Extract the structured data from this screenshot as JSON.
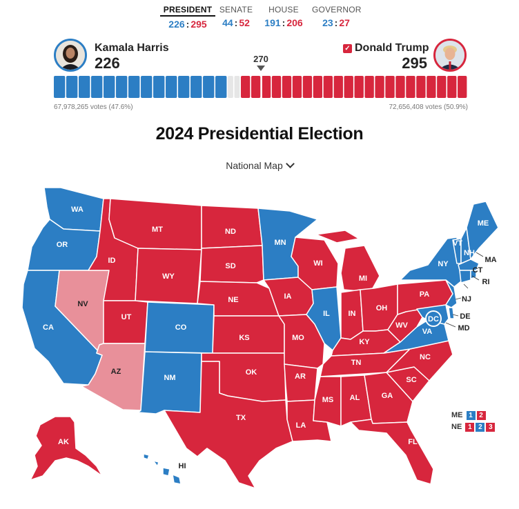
{
  "tabs": [
    {
      "label": "PRESIDENT",
      "dem": "226",
      "rep": "295",
      "active": true
    },
    {
      "label": "SENATE",
      "dem": "44",
      "rep": "52"
    },
    {
      "label": "HOUSE",
      "dem": "191",
      "rep": "206"
    },
    {
      "label": "GOVERNOR",
      "dem": "23",
      "rep": "27"
    }
  ],
  "harris": {
    "name": "Kamala Harris",
    "ev": "226",
    "popular": "67,978,265 votes (47.6%)"
  },
  "trump": {
    "name": "Donald Trump",
    "ev": "295",
    "popular": "72,656,408 votes (50.9%)",
    "winner_mark": "✓"
  },
  "threshold": "270",
  "ev_bar": {
    "dem": 226,
    "rep": 295,
    "total": 538
  },
  "title": "2024 Presidential Election",
  "map_selector": "National Map",
  "states": [
    {
      "abbr": "WA"
    },
    {
      "abbr": "OR"
    },
    {
      "abbr": "CA"
    },
    {
      "abbr": "NV"
    },
    {
      "abbr": "ID"
    },
    {
      "abbr": "MT"
    },
    {
      "abbr": "WY"
    },
    {
      "abbr": "UT"
    },
    {
      "abbr": "AZ"
    },
    {
      "abbr": "CO"
    },
    {
      "abbr": "NM"
    },
    {
      "abbr": "ND"
    },
    {
      "abbr": "SD"
    },
    {
      "abbr": "NE"
    },
    {
      "abbr": "KS"
    },
    {
      "abbr": "OK"
    },
    {
      "abbr": "TX"
    },
    {
      "abbr": "MN"
    },
    {
      "abbr": "IA"
    },
    {
      "abbr": "MO"
    },
    {
      "abbr": "AR"
    },
    {
      "abbr": "LA"
    },
    {
      "abbr": "WI"
    },
    {
      "abbr": "IL"
    },
    {
      "abbr": "MI"
    },
    {
      "abbr": "IN"
    },
    {
      "abbr": "OH"
    },
    {
      "abbr": "KY"
    },
    {
      "abbr": "TN"
    },
    {
      "abbr": "MS"
    },
    {
      "abbr": "AL"
    },
    {
      "abbr": "GA"
    },
    {
      "abbr": "FL"
    },
    {
      "abbr": "SC"
    },
    {
      "abbr": "NC"
    },
    {
      "abbr": "VA"
    },
    {
      "abbr": "WV"
    },
    {
      "abbr": "PA"
    },
    {
      "abbr": "NY"
    },
    {
      "abbr": "VT"
    },
    {
      "abbr": "NH"
    },
    {
      "abbr": "ME"
    },
    {
      "abbr": "MA"
    },
    {
      "abbr": "CT"
    },
    {
      "abbr": "RI"
    },
    {
      "abbr": "NJ"
    },
    {
      "abbr": "DE"
    },
    {
      "abbr": "MD"
    },
    {
      "abbr": "DC"
    },
    {
      "abbr": "AK"
    },
    {
      "abbr": "HI"
    }
  ],
  "splits": [
    {
      "abbr": "ME",
      "boxes": [
        "1",
        "2"
      ]
    },
    {
      "abbr": "NE",
      "boxes": [
        "1",
        "2",
        "3"
      ]
    }
  ],
  "colors": {
    "dem": "#2c7ec4",
    "rep": "#d7263d",
    "rep_flip": "#e8909a",
    "undecided": "#e6e6e6"
  }
}
